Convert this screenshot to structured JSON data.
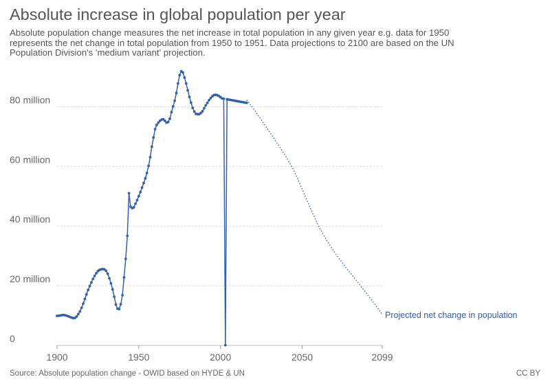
{
  "header": {
    "title": "Absolute increase in global population per year",
    "subtitle": "Absolute population change measures the net increase in total population in any given year e.g. data for 1950 represents the net change in total population from 1950 to 1951. Data projections to 2100 are based on the UN Population Division's 'medium variant' projection."
  },
  "footer": {
    "source": "Source: Absolute population change - OWID based on HYDE & UN",
    "license": "CC BY"
  },
  "chart_data": {
    "type": "line",
    "title": "Absolute increase in global population per year",
    "xlabel": "",
    "ylabel": "",
    "xlim": [
      1900,
      2099
    ],
    "ylim": [
      0,
      90000000
    ],
    "x_ticks": [
      {
        "value": 1900,
        "label": "1900"
      },
      {
        "value": 1950,
        "label": "1950"
      },
      {
        "value": 2000,
        "label": "2000"
      },
      {
        "value": 2050,
        "label": "2050"
      },
      {
        "value": 2099,
        "label": "2099"
      }
    ],
    "y_ticks": [
      {
        "value": 0,
        "label": "0"
      },
      {
        "value": 20000000,
        "label": "20 million"
      },
      {
        "value": 40000000,
        "label": "40 million"
      },
      {
        "value": 60000000,
        "label": "60 million"
      },
      {
        "value": 80000000,
        "label": "80 million"
      }
    ],
    "grid": true,
    "series": [
      {
        "name": "Net change in population",
        "color": "#3360a9",
        "style": "solid-with-markers",
        "x": [
          1900,
          1901,
          1902,
          1903,
          1904,
          1905,
          1906,
          1907,
          1908,
          1909,
          1910,
          1911,
          1912,
          1913,
          1914,
          1915,
          1916,
          1917,
          1918,
          1919,
          1920,
          1921,
          1922,
          1923,
          1924,
          1925,
          1926,
          1927,
          1928,
          1929,
          1930,
          1931,
          1932,
          1933,
          1934,
          1935,
          1936,
          1937,
          1938,
          1939,
          1940,
          1941,
          1942,
          1943,
          1944,
          1945,
          1946,
          1947,
          1948,
          1949,
          1950,
          1951,
          1952,
          1953,
          1954,
          1955,
          1956,
          1957,
          1958,
          1959,
          1960,
          1961,
          1962,
          1963,
          1964,
          1965,
          1966,
          1967,
          1968,
          1969,
          1970,
          1971,
          1972,
          1973,
          1974,
          1975,
          1976,
          1977,
          1978,
          1979,
          1980,
          1981,
          1982,
          1983,
          1984,
          1985,
          1986,
          1987,
          1988,
          1989,
          1990,
          1991,
          1992,
          1993,
          1994,
          1995,
          1996,
          1997,
          1998,
          1999,
          2000,
          2001,
          2002,
          2003,
          2004,
          2005,
          2006,
          2007,
          2008,
          2009,
          2010,
          2011,
          2012,
          2013,
          2014,
          2015,
          2016
        ],
        "values": [
          9900000,
          9950000,
          10050000,
          10150000,
          10200000,
          10100000,
          9950000,
          9750000,
          9500000,
          9300000,
          9150000,
          9250000,
          9700000,
          10500000,
          11400000,
          12600000,
          14000000,
          15600000,
          17100000,
          18600000,
          19900000,
          21100000,
          22300000,
          23300000,
          24200000,
          24900000,
          25300000,
          25500000,
          25600000,
          25500000,
          25000000,
          24000000,
          22500000,
          20800000,
          18800000,
          16300000,
          13700000,
          12300000,
          12200000,
          13800000,
          16800000,
          22800000,
          29000000,
          36700000,
          51000000,
          46500000,
          46000000,
          46300000,
          47500000,
          48700000,
          50000000,
          51400000,
          52900000,
          54400000,
          56000000,
          57800000,
          60200000,
          63100000,
          66600000,
          69700000,
          72500000,
          73900000,
          74700000,
          75300000,
          75700000,
          75800000,
          75300000,
          74700000,
          74900000,
          76000000,
          78200000,
          80100000,
          82000000,
          84600000,
          87800000,
          90600000,
          91900000,
          91500000,
          89800000,
          87800000,
          85500000,
          83300000,
          81400000,
          79600000,
          78400000,
          77600000,
          77500000,
          77500000,
          77900000,
          78500000,
          79500000,
          80500000,
          81300000,
          82200000,
          82900000,
          83500000,
          83900000,
          84000000,
          83900000,
          83600000,
          83200000,
          82800000,
          82700000,
          82600,
          82500000,
          82400000,
          82300000,
          82200000,
          82100000,
          82000000,
          81900000,
          81800000,
          81700000,
          81600000,
          81500000,
          81400000,
          81300000
        ]
      },
      {
        "name": "Projected net change in population",
        "color": "#3360a9",
        "style": "dotted",
        "label": "Projected net change in population",
        "x": [
          2016,
          2020,
          2025,
          2030,
          2035,
          2040,
          2045,
          2050,
          2055,
          2060,
          2065,
          2070,
          2075,
          2080,
          2085,
          2090,
          2095,
          2099
        ],
        "values": [
          82300000,
          79500000,
          75600000,
          71600000,
          67500000,
          63400000,
          58600000,
          52400000,
          46000000,
          40000000,
          35200000,
          31000000,
          27400000,
          23900000,
          20500000,
          17000000,
          13400000,
          10400000
        ]
      }
    ]
  }
}
